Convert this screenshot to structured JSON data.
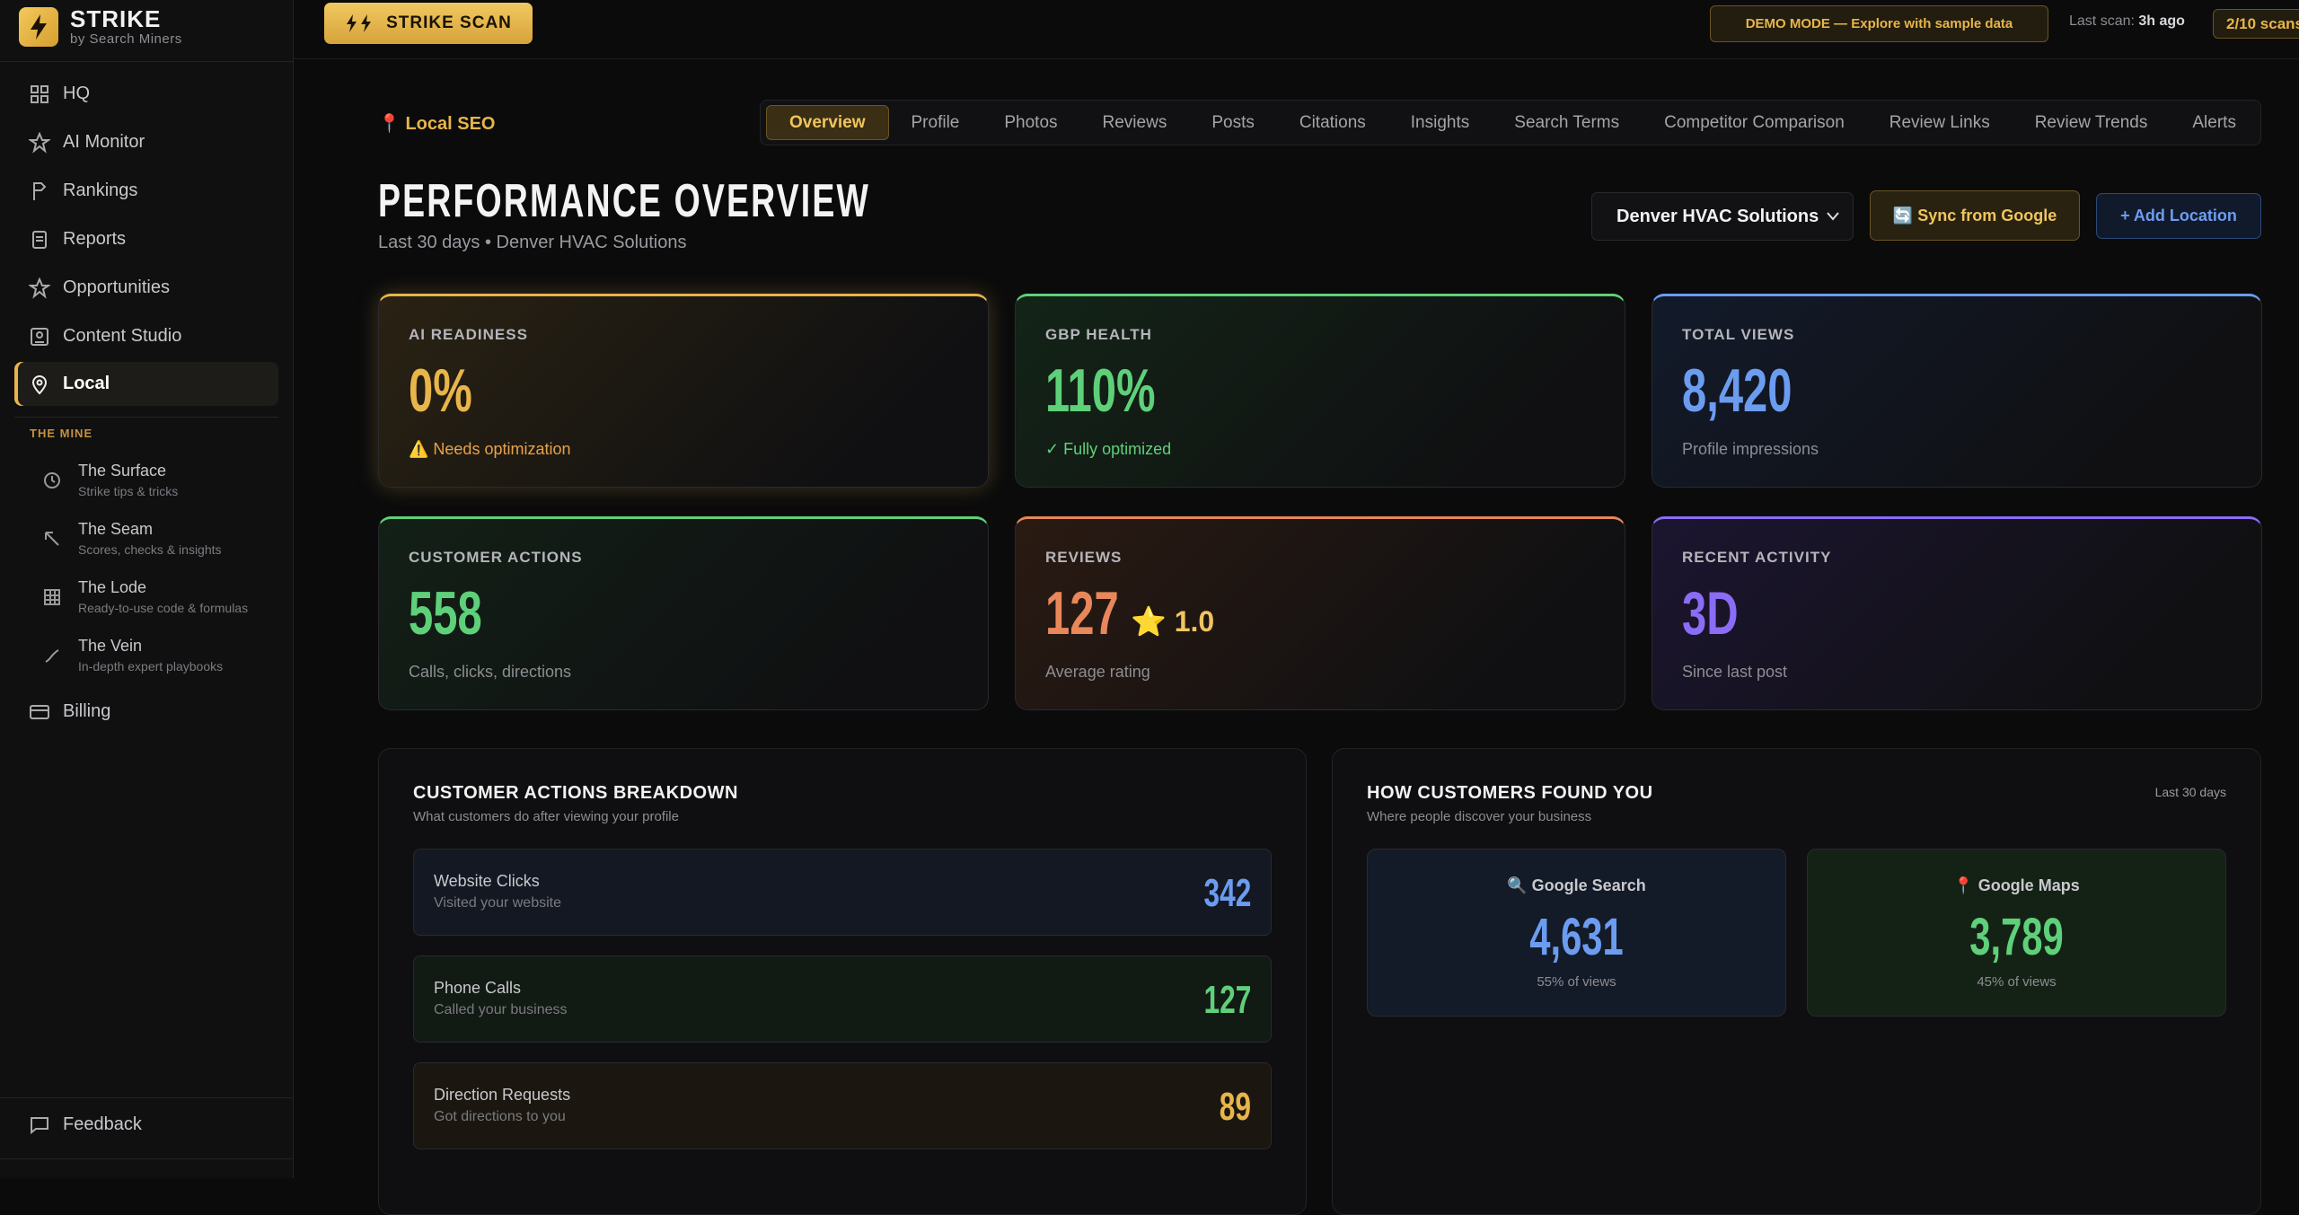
{
  "sidebar": {
    "brand": "STRIKE",
    "tagline": "by Search Miners",
    "nav": [
      "HQ",
      "AI Monitor",
      "Rankings",
      "Reports",
      "Opportunities",
      "Content Studio",
      "Local"
    ],
    "section": "THE MINE",
    "mine": [
      {
        "title": "The Surface",
        "sub": "Strike tips & tricks"
      },
      {
        "title": "The Seam",
        "sub": "Scores, checks & insights"
      },
      {
        "title": "The Lode",
        "sub": "Ready-to-use code & formulas"
      },
      {
        "title": "The Vein",
        "sub": "In-depth expert playbooks"
      }
    ],
    "billing": "Billing",
    "feedback": "Feedback"
  },
  "topbar": {
    "scan_button": "STRIKE SCAN",
    "demo": "DEMO MODE — Explore with sample data",
    "last_scan_label": "Last scan:",
    "last_scan_value": "3h ago",
    "scans": "2/10 scans"
  },
  "header": {
    "crumb": "📍 Local SEO",
    "tabs": [
      "Overview",
      "Profile",
      "Photos",
      "Reviews",
      "Posts",
      "Citations",
      "Insights",
      "Search Terms",
      "Competitor Comparison",
      "Review Links",
      "Review Trends",
      "Alerts"
    ],
    "title": "PERFORMANCE OVERVIEW",
    "subtitle": "Last 30 days • Denver HVAC Solutions",
    "location": "Denver HVAC Solutions",
    "sync": "🔄 Sync from Google",
    "add": "+ Add Location"
  },
  "cards": [
    {
      "label": "AI READINESS",
      "value": "0%",
      "note": "⚠️ Needs optimization"
    },
    {
      "label": "GBP HEALTH",
      "value": "110%",
      "note": "✓ Fully optimized"
    },
    {
      "label": "TOTAL VIEWS",
      "value": "8,420",
      "note": "Profile impressions"
    },
    {
      "label": "CUSTOMER ACTIONS",
      "value": "558",
      "note": "Calls, clicks, directions"
    },
    {
      "label": "REVIEWS",
      "value": "127",
      "extra": "⭐ 1.0",
      "note": "Average rating"
    },
    {
      "label": "RECENT ACTIVITY",
      "value": "3D",
      "note": "Since last post"
    }
  ],
  "breakdown": {
    "title": "CUSTOMER ACTIONS BREAKDOWN",
    "subtitle": "What customers do after viewing your profile",
    "rows": [
      {
        "label": "Website Clicks",
        "sub": "Visited your website",
        "value": "342"
      },
      {
        "label": "Phone Calls",
        "sub": "Called your business",
        "value": "127"
      },
      {
        "label": "Direction Requests",
        "sub": "Got directions to you",
        "value": "89"
      }
    ]
  },
  "found": {
    "title": "HOW CUSTOMERS FOUND YOU",
    "subtitle": "Where people discover your business",
    "period": "Last 30 days",
    "sources": [
      {
        "label": "🔍 Google Search",
        "value": "4,631",
        "share": "55% of views"
      },
      {
        "label": "📍 Google Maps",
        "value": "3,789",
        "share": "45% of views"
      }
    ]
  }
}
